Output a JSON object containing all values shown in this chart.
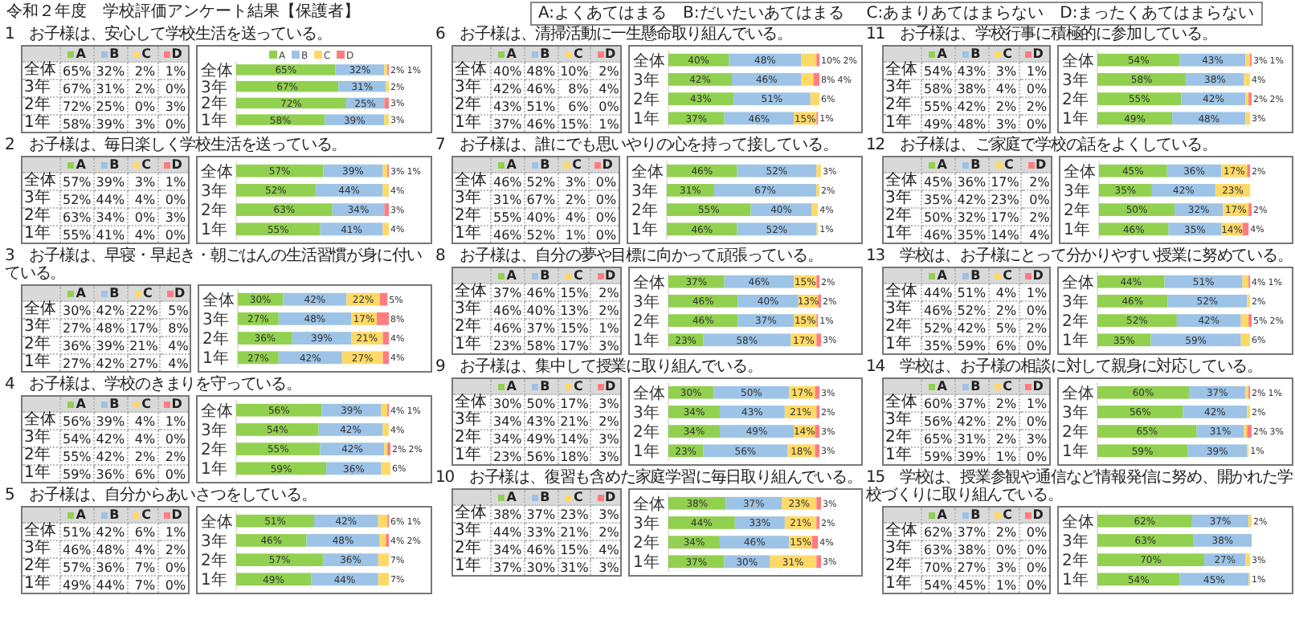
{
  "chart_data": [
    {
      "type": "bar",
      "orientation": "horizontal",
      "stacked": true,
      "title": "1　お子様は、安心して学校生活を送っている。",
      "annotations": [
        "令和２年度　学校評価アンケート結果【保護者】",
        "A:よくあてはまる　B:だいたいあてはまる",
        "C:あまりあてはまらない　D:まったくあてはまらない"
      ],
      "legend": "top",
      "categories": [
        "全体",
        "3年",
        "2年",
        "1年"
      ],
      "xlim": [
        0,
        101
      ],
      "tick_labels": "y",
      "series": [
        {
          "name": "A",
          "color": "#92d050",
          "values": [
            65,
            67,
            72,
            58
          ],
          "value_labels": [
            "65%",
            "67%",
            "72%",
            "58%"
          ]
        },
        {
          "name": "B",
          "color": "#9dc3e6",
          "values": [
            32,
            31,
            25,
            39
          ],
          "value_labels": [
            "32%",
            "31%",
            "25%",
            "39%"
          ]
        },
        {
          "name": "C",
          "color": "#ffd966",
          "values": [
            2,
            2,
            0,
            3
          ],
          "value_labels": [
            "2%",
            "2%",
            "0%",
            "3%"
          ]
        },
        {
          "name": "D",
          "color": "#ff7c80",
          "values": [
            1,
            0,
            3,
            0
          ],
          "value_labels": [
            "1%",
            "0%",
            "3%",
            "0%"
          ]
        }
      ]
    },
    {
      "type": "bar",
      "orientation": "horizontal",
      "stacked": true,
      "legend": "left",
      "title": "2　お子様は、毎日楽しく学校生活を送っている。",
      "categories": [
        "全体",
        "3年",
        "2年",
        "1年"
      ],
      "xlim": [
        0,
        101
      ],
      "tick_labels": "y",
      "series": [
        {
          "name": "A",
          "color": "#92d050",
          "values": [
            57,
            52,
            63,
            55
          ],
          "value_labels": [
            "57%",
            "52%",
            "63%",
            "55%"
          ]
        },
        {
          "name": "B",
          "color": "#9dc3e6",
          "values": [
            39,
            44,
            34,
            41
          ],
          "value_labels": [
            "39%",
            "44%",
            "34%",
            "41%"
          ]
        },
        {
          "name": "C",
          "color": "#ffd966",
          "values": [
            3,
            4,
            0,
            4
          ],
          "value_labels": [
            "3%",
            "4%",
            "0%",
            "4%"
          ]
        },
        {
          "name": "D",
          "color": "#ff7c80",
          "values": [
            1,
            0,
            3,
            0
          ],
          "value_labels": [
            "1%",
            "0%",
            "3%",
            "0%"
          ]
        }
      ]
    },
    {
      "type": "bar",
      "orientation": "horizontal",
      "stacked": true,
      "legend": "left",
      "title": "3　お子様は、早寝・早起き・朝ごはんの生活習慣が身に付いている。",
      "categories": [
        "全体",
        "3年",
        "2年",
        "1年"
      ],
      "xlim": [
        0,
        101
      ],
      "tick_labels": "y",
      "series": [
        {
          "name": "A",
          "color": "#92d050",
          "values": [
            30,
            27,
            36,
            27
          ],
          "value_labels": [
            "30%",
            "27%",
            "36%",
            "27%"
          ]
        },
        {
          "name": "B",
          "color": "#9dc3e6",
          "values": [
            42,
            48,
            39,
            42
          ],
          "value_labels": [
            "42%",
            "48%",
            "39%",
            "42%"
          ]
        },
        {
          "name": "C",
          "color": "#ffd966",
          "values": [
            22,
            17,
            21,
            27
          ],
          "value_labels": [
            "22%",
            "17%",
            "21%",
            "27%"
          ]
        },
        {
          "name": "D",
          "color": "#ff7c80",
          "values": [
            5,
            8,
            4,
            4
          ],
          "value_labels": [
            "5%",
            "8%",
            "4%",
            "4%"
          ]
        }
      ]
    },
    {
      "type": "bar",
      "orientation": "horizontal",
      "stacked": true,
      "legend": "left",
      "title": "4　お子様は、学校のきまりを守っている。",
      "categories": [
        "全体",
        "3年",
        "2年",
        "1年"
      ],
      "xlim": [
        0,
        101
      ],
      "tick_labels": "y",
      "series": [
        {
          "name": "A",
          "color": "#92d050",
          "values": [
            56,
            54,
            55,
            59
          ],
          "value_labels": [
            "56%",
            "54%",
            "55%",
            "59%"
          ]
        },
        {
          "name": "B",
          "color": "#9dc3e6",
          "values": [
            39,
            42,
            42,
            36
          ],
          "value_labels": [
            "39%",
            "42%",
            "42%",
            "36%"
          ]
        },
        {
          "name": "C",
          "color": "#ffd966",
          "values": [
            4,
            4,
            2,
            6
          ],
          "value_labels": [
            "4%",
            "4%",
            "2%",
            "6%"
          ]
        },
        {
          "name": "D",
          "color": "#ff7c80",
          "values": [
            1,
            0,
            2,
            0
          ],
          "value_labels": [
            "1%",
            "0%",
            "2%",
            "0%"
          ]
        }
      ]
    },
    {
      "type": "bar",
      "orientation": "horizontal",
      "stacked": true,
      "legend": "left",
      "title": "5　お子様は、自分からあいさつをしている。",
      "categories": [
        "全体",
        "3年",
        "2年",
        "1年"
      ],
      "xlim": [
        0,
        101
      ],
      "tick_labels": "y",
      "series": [
        {
          "name": "A",
          "color": "#92d050",
          "values": [
            51,
            46,
            57,
            49
          ],
          "value_labels": [
            "51%",
            "46%",
            "57%",
            "49%"
          ]
        },
        {
          "name": "B",
          "color": "#9dc3e6",
          "values": [
            42,
            48,
            36,
            44
          ],
          "value_labels": [
            "42%",
            "48%",
            "36%",
            "44%"
          ]
        },
        {
          "name": "C",
          "color": "#ffd966",
          "values": [
            6,
            4,
            7,
            7
          ],
          "value_labels": [
            "6%",
            "4%",
            "7%",
            "7%"
          ]
        },
        {
          "name": "D",
          "color": "#ff7c80",
          "values": [
            1,
            2,
            0,
            0
          ],
          "value_labels": [
            "1%",
            "2%",
            "0%",
            "0%"
          ]
        }
      ]
    },
    {
      "type": "bar",
      "orientation": "horizontal",
      "stacked": true,
      "legend": "left",
      "title": "6　お子様は、清掃活動に一生懸命取り組んでいる。",
      "categories": [
        "全体",
        "3年",
        "2年",
        "1年"
      ],
      "xlim": [
        0,
        101
      ],
      "tick_labels": "y",
      "series": [
        {
          "name": "A",
          "color": "#92d050",
          "values": [
            40,
            42,
            43,
            37
          ],
          "value_labels": [
            "40%",
            "42%",
            "43%",
            "37%"
          ]
        },
        {
          "name": "B",
          "color": "#9dc3e6",
          "values": [
            48,
            46,
            51,
            46
          ],
          "value_labels": [
            "48%",
            "46%",
            "51%",
            "46%"
          ]
        },
        {
          "name": "C",
          "color": "#ffd966",
          "values": [
            10,
            8,
            6,
            15
          ],
          "value_labels": [
            "10%",
            "8%",
            "6%",
            "15%"
          ]
        },
        {
          "name": "D",
          "color": "#ff7c80",
          "values": [
            2,
            4,
            0,
            1
          ],
          "value_labels": [
            "2%",
            "4%",
            "0%",
            "1%"
          ]
        }
      ]
    },
    {
      "type": "bar",
      "orientation": "horizontal",
      "stacked": true,
      "legend": "left",
      "title": "7　お子様は、誰にでも思いやりの心を持って接している。",
      "categories": [
        "全体",
        "3年",
        "2年",
        "1年"
      ],
      "xlim": [
        0,
        101
      ],
      "tick_labels": "y",
      "series": [
        {
          "name": "A",
          "color": "#92d050",
          "values": [
            46,
            31,
            55,
            46
          ],
          "value_labels": [
            "46%",
            "31%",
            "55%",
            "46%"
          ]
        },
        {
          "name": "B",
          "color": "#9dc3e6",
          "values": [
            52,
            67,
            40,
            52
          ],
          "value_labels": [
            "52%",
            "67%",
            "40%",
            "52%"
          ]
        },
        {
          "name": "C",
          "color": "#ffd966",
          "values": [
            3,
            2,
            4,
            1
          ],
          "value_labels": [
            "3%",
            "2%",
            "4%",
            "1%"
          ]
        },
        {
          "name": "D",
          "color": "#ff7c80",
          "values": [
            0,
            0,
            0,
            0
          ],
          "value_labels": [
            "0%",
            "0%",
            "0%",
            "0%"
          ]
        }
      ]
    },
    {
      "type": "bar",
      "orientation": "horizontal",
      "stacked": true,
      "legend": "left",
      "title": "8　お子様は、自分の夢や目標に向かって頑張っている。",
      "categories": [
        "全体",
        "3年",
        "2年",
        "1年"
      ],
      "xlim": [
        0,
        101
      ],
      "tick_labels": "y",
      "series": [
        {
          "name": "A",
          "color": "#92d050",
          "values": [
            37,
            46,
            46,
            23
          ],
          "value_labels": [
            "37%",
            "46%",
            "46%",
            "23%"
          ]
        },
        {
          "name": "B",
          "color": "#9dc3e6",
          "values": [
            46,
            40,
            37,
            58
          ],
          "value_labels": [
            "46%",
            "40%",
            "37%",
            "58%"
          ]
        },
        {
          "name": "C",
          "color": "#ffd966",
          "values": [
            15,
            13,
            15,
            17
          ],
          "value_labels": [
            "15%",
            "13%",
            "15%",
            "17%"
          ]
        },
        {
          "name": "D",
          "color": "#ff7c80",
          "values": [
            2,
            2,
            1,
            3
          ],
          "value_labels": [
            "2%",
            "2%",
            "1%",
            "3%"
          ]
        }
      ]
    },
    {
      "type": "bar",
      "orientation": "horizontal",
      "stacked": true,
      "legend": "left",
      "title": "9　お子様は、集中して授業に取り組んでいる。",
      "categories": [
        "全体",
        "3年",
        "2年",
        "1年"
      ],
      "xlim": [
        0,
        101
      ],
      "tick_labels": "y",
      "series": [
        {
          "name": "A",
          "color": "#92d050",
          "values": [
            30,
            34,
            34,
            23
          ],
          "value_labels": [
            "30%",
            "34%",
            "34%",
            "23%"
          ]
        },
        {
          "name": "B",
          "color": "#9dc3e6",
          "values": [
            50,
            43,
            49,
            56
          ],
          "value_labels": [
            "50%",
            "43%",
            "49%",
            "56%"
          ]
        },
        {
          "name": "C",
          "color": "#ffd966",
          "values": [
            17,
            21,
            14,
            18
          ],
          "value_labels": [
            "17%",
            "21%",
            "14%",
            "18%"
          ]
        },
        {
          "name": "D",
          "color": "#ff7c80",
          "values": [
            3,
            2,
            3,
            3
          ],
          "value_labels": [
            "3%",
            "2%",
            "3%",
            "3%"
          ]
        }
      ]
    },
    {
      "type": "bar",
      "orientation": "horizontal",
      "stacked": true,
      "legend": "left",
      "title": "10　お子様は、復習も含めた家庭学習に毎日取り組んでいる。",
      "categories": [
        "全体",
        "3年",
        "2年",
        "1年"
      ],
      "xlim": [
        0,
        101
      ],
      "tick_labels": "y",
      "series": [
        {
          "name": "A",
          "color": "#92d050",
          "values": [
            38,
            44,
            34,
            37
          ],
          "value_labels": [
            "38%",
            "44%",
            "34%",
            "37%"
          ]
        },
        {
          "name": "B",
          "color": "#9dc3e6",
          "values": [
            37,
            33,
            46,
            30
          ],
          "value_labels": [
            "37%",
            "33%",
            "46%",
            "30%"
          ]
        },
        {
          "name": "C",
          "color": "#ffd966",
          "values": [
            23,
            21,
            15,
            31
          ],
          "value_labels": [
            "23%",
            "21%",
            "15%",
            "31%"
          ]
        },
        {
          "name": "D",
          "color": "#ff7c80",
          "values": [
            3,
            2,
            4,
            3
          ],
          "value_labels": [
            "3%",
            "2%",
            "4%",
            "3%"
          ]
        }
      ]
    },
    {
      "type": "bar",
      "orientation": "horizontal",
      "stacked": true,
      "legend": "left",
      "title": "11　お子様は、学校行事に積極的に参加している。",
      "categories": [
        "全体",
        "3年",
        "2年",
        "1年"
      ],
      "xlim": [
        0,
        101
      ],
      "tick_labels": "y",
      "series": [
        {
          "name": "A",
          "color": "#92d050",
          "values": [
            54,
            58,
            55,
            49
          ],
          "value_labels": [
            "54%",
            "58%",
            "55%",
            "49%"
          ]
        },
        {
          "name": "B",
          "color": "#9dc3e6",
          "values": [
            43,
            38,
            42,
            48
          ],
          "value_labels": [
            "43%",
            "38%",
            "42%",
            "48%"
          ]
        },
        {
          "name": "C",
          "color": "#ffd966",
          "values": [
            3,
            4,
            2,
            3
          ],
          "value_labels": [
            "3%",
            "4%",
            "2%",
            "3%"
          ]
        },
        {
          "name": "D",
          "color": "#ff7c80",
          "values": [
            1,
            0,
            2,
            0
          ],
          "value_labels": [
            "1%",
            "0%",
            "2%",
            "0%"
          ]
        }
      ]
    },
    {
      "type": "bar",
      "orientation": "horizontal",
      "stacked": true,
      "legend": "left",
      "title": "12　お子様は、ご家庭で学校の話をよくしている。",
      "categories": [
        "全体",
        "3年",
        "2年",
        "1年"
      ],
      "xlim": [
        0,
        101
      ],
      "tick_labels": "y",
      "series": [
        {
          "name": "A",
          "color": "#92d050",
          "values": [
            45,
            35,
            50,
            46
          ],
          "value_labels": [
            "45%",
            "35%",
            "50%",
            "46%"
          ]
        },
        {
          "name": "B",
          "color": "#9dc3e6",
          "values": [
            36,
            42,
            32,
            35
          ],
          "value_labels": [
            "36%",
            "42%",
            "32%",
            "35%"
          ]
        },
        {
          "name": "C",
          "color": "#ffd966",
          "values": [
            17,
            23,
            17,
            14
          ],
          "value_labels": [
            "17%",
            "23%",
            "17%",
            "14%"
          ]
        },
        {
          "name": "D",
          "color": "#ff7c80",
          "values": [
            2,
            0,
            2,
            4
          ],
          "value_labels": [
            "2%",
            "0%",
            "2%",
            "4%"
          ]
        }
      ]
    },
    {
      "type": "bar",
      "orientation": "horizontal",
      "stacked": true,
      "legend": "left",
      "title": "13　学校は、お子様にとって分かりやすい授業に努めている。",
      "categories": [
        "全体",
        "3年",
        "2年",
        "1年"
      ],
      "xlim": [
        0,
        101
      ],
      "tick_labels": "y",
      "series": [
        {
          "name": "A",
          "color": "#92d050",
          "values": [
            44,
            46,
            52,
            35
          ],
          "value_labels": [
            "44%",
            "46%",
            "52%",
            "35%"
          ]
        },
        {
          "name": "B",
          "color": "#9dc3e6",
          "values": [
            51,
            52,
            42,
            59
          ],
          "value_labels": [
            "51%",
            "52%",
            "42%",
            "59%"
          ]
        },
        {
          "name": "C",
          "color": "#ffd966",
          "values": [
            4,
            2,
            5,
            6
          ],
          "value_labels": [
            "4%",
            "2%",
            "5%",
            "6%"
          ]
        },
        {
          "name": "D",
          "color": "#ff7c80",
          "values": [
            1,
            0,
            2,
            0
          ],
          "value_labels": [
            "1%",
            "0%",
            "2%",
            "0%"
          ]
        }
      ]
    },
    {
      "type": "bar",
      "orientation": "horizontal",
      "stacked": true,
      "legend": "left",
      "title": "14　学校は、お子様の相談に対して親身に対応している。",
      "categories": [
        "全体",
        "3年",
        "2年",
        "1年"
      ],
      "xlim": [
        0,
        101
      ],
      "tick_labels": "y",
      "series": [
        {
          "name": "A",
          "color": "#92d050",
          "values": [
            60,
            56,
            65,
            59
          ],
          "value_labels": [
            "60%",
            "56%",
            "65%",
            "59%"
          ]
        },
        {
          "name": "B",
          "color": "#9dc3e6",
          "values": [
            37,
            42,
            31,
            39
          ],
          "value_labels": [
            "37%",
            "42%",
            "31%",
            "39%"
          ]
        },
        {
          "name": "C",
          "color": "#ffd966",
          "values": [
            2,
            2,
            2,
            1
          ],
          "value_labels": [
            "2%",
            "2%",
            "2%",
            "1%"
          ]
        },
        {
          "name": "D",
          "color": "#ff7c80",
          "values": [
            1,
            0,
            3,
            0
          ],
          "value_labels": [
            "1%",
            "0%",
            "3%",
            "0%"
          ]
        }
      ]
    },
    {
      "type": "bar",
      "orientation": "horizontal",
      "stacked": true,
      "legend": "left",
      "title": "15　学校は、授業参観や通信など情報発信に努め、開かれた学校づくりに取り組んでいる。",
      "categories": [
        "全体",
        "3年",
        "2年",
        "1年"
      ],
      "xlim": [
        0,
        101
      ],
      "tick_labels": "y",
      "series": [
        {
          "name": "A",
          "color": "#92d050",
          "values": [
            62,
            63,
            70,
            54
          ],
          "value_labels": [
            "62%",
            "63%",
            "70%",
            "54%"
          ]
        },
        {
          "name": "B",
          "color": "#9dc3e6",
          "values": [
            37,
            38,
            27,
            45
          ],
          "value_labels": [
            "37%",
            "38%",
            "27%",
            "45%"
          ]
        },
        {
          "name": "C",
          "color": "#ffd966",
          "values": [
            2,
            0,
            3,
            1
          ],
          "value_labels": [
            "2%",
            "0%",
            "3%",
            "1%"
          ]
        },
        {
          "name": "D",
          "color": "#ff7c80",
          "values": [
            0,
            0,
            0,
            0
          ],
          "value_labels": [
            "0%",
            "0%",
            "0%",
            "0%"
          ]
        }
      ]
    }
  ]
}
